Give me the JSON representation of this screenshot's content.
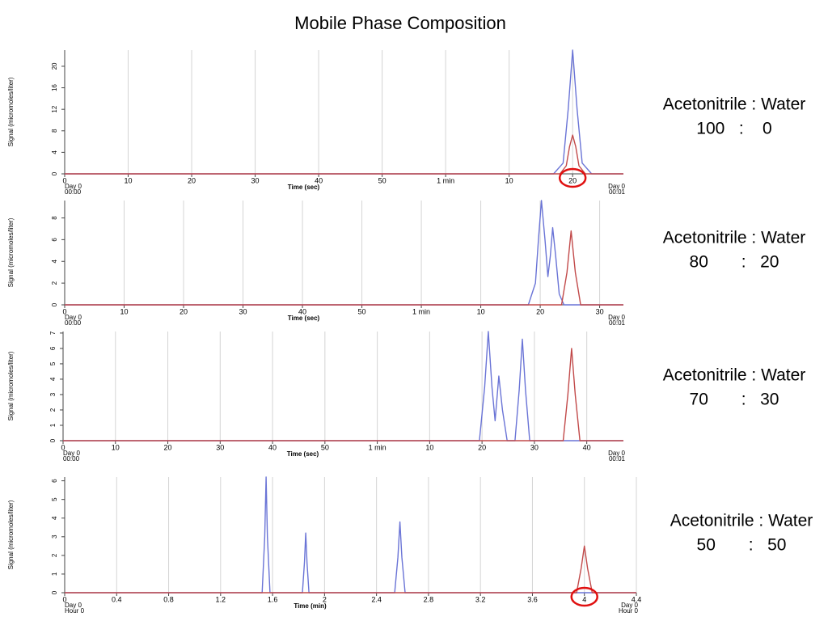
{
  "chart_data": [
    {
      "type": "line",
      "title": "Mobile Phase Composition",
      "x_label": "Time (sec)",
      "y_label": "Signal (micromoles/liter)",
      "start_label": [
        "Day 0",
        "00:00"
      ],
      "end_label": [
        "Day 0",
        "00:01"
      ],
      "annotation": "Acetonitrile : Water",
      "ratio": "100   :    0",
      "highlight": true,
      "xlim": [
        0,
        88
      ],
      "xticks": [
        0,
        10,
        20,
        30,
        40,
        50,
        {
          "value": 60,
          "label": "1 min"
        },
        {
          "value": 70,
          "label": "10"
        },
        {
          "value": 80,
          "label": "20"
        }
      ],
      "ylim": [
        0,
        23
      ],
      "yticks": [
        0,
        4,
        8,
        12,
        16,
        20
      ],
      "grid": true,
      "series": [
        {
          "color": "#6a74d6",
          "x": [
            0,
            77,
            78.5,
            79.3,
            80,
            80.7,
            81.5,
            83,
            88
          ],
          "values": [
            0,
            0,
            2,
            12,
            23,
            12,
            2,
            0,
            0
          ]
        },
        {
          "color": "#c24a4a",
          "x": [
            0,
            78,
            79,
            79.5,
            80,
            80.5,
            81,
            82,
            88
          ],
          "values": [
            0,
            0,
            1.5,
            5,
            7.2,
            5,
            1.5,
            0,
            0
          ]
        }
      ]
    },
    {
      "type": "line",
      "x_label": "Time (sec)",
      "y_label": "Signal (micromoles/liter)",
      "start_label": [
        "Day 0",
        "00:00"
      ],
      "end_label": [
        "Day 0",
        "00:01"
      ],
      "annotation": "Acetonitrile : Water",
      "ratio": "80       :   20",
      "highlight": false,
      "xlim": [
        0,
        94
      ],
      "xticks": [
        0,
        10,
        20,
        30,
        40,
        50,
        {
          "value": 60,
          "label": "1 min"
        },
        {
          "value": 70,
          "label": "10"
        },
        {
          "value": 80,
          "label": "20"
        },
        {
          "value": 90,
          "label": "30"
        }
      ],
      "ylim": [
        0,
        9.6
      ],
      "yticks": [
        0,
        2,
        4,
        6,
        8
      ],
      "grid": true,
      "series": [
        {
          "color": "#6a74d6",
          "x": [
            0,
            78,
            79.2,
            79.7,
            80.2,
            80.8,
            81.3,
            81.7,
            82.1,
            82.6,
            83.2,
            84,
            94
          ],
          "values": [
            0,
            0,
            2,
            6,
            9.6,
            6,
            2.6,
            4.5,
            7.1,
            4.5,
            1,
            0,
            0
          ]
        },
        {
          "color": "#c24a4a",
          "x": [
            0,
            83.6,
            84.5,
            85.2,
            85.9,
            86.8,
            94
          ],
          "values": [
            0,
            0,
            3,
            6.8,
            3,
            0,
            0
          ]
        }
      ]
    },
    {
      "type": "line",
      "x_label": "Time (sec)",
      "y_label": "Signal (micromoles/liter)",
      "start_label": [
        "Day 0",
        "00:00"
      ],
      "end_label": [
        "Day 0",
        "00:01"
      ],
      "annotation": "Acetonitrile : Water",
      "ratio": "70       :   30",
      "highlight": false,
      "xlim": [
        0,
        107
      ],
      "xticks": [
        0,
        10,
        20,
        30,
        40,
        50,
        {
          "value": 60,
          "label": "1 min"
        },
        {
          "value": 70,
          "label": "10"
        },
        {
          "value": 80,
          "label": "20"
        },
        {
          "value": 90,
          "label": "30"
        },
        {
          "value": 100,
          "label": "40"
        }
      ],
      "ylim": [
        0,
        7.1
      ],
      "yticks": [
        0,
        1,
        2,
        3,
        4,
        5,
        6,
        7
      ],
      "grid": true,
      "series": [
        {
          "color": "#6a74d6",
          "x": [
            0,
            79.5,
            80.5,
            81.2,
            81.9,
            82.5,
            83.2,
            83.9,
            84.8,
            86.3,
            87.1,
            87.7,
            88.3,
            89.1,
            107
          ],
          "values": [
            0,
            0,
            3.5,
            7.1,
            3.5,
            1.3,
            4.2,
            2,
            0,
            0,
            3.3,
            6.6,
            3.3,
            0,
            0
          ]
        },
        {
          "color": "#c24a4a",
          "x": [
            0,
            95.5,
            96.4,
            97.1,
            97.8,
            98.7,
            107
          ],
          "values": [
            0,
            0,
            3,
            6,
            3,
            0,
            0
          ]
        }
      ]
    },
    {
      "type": "line",
      "x_label": "Time (min)",
      "y_label": "Signal (micromoles/liter)",
      "start_label": [
        "Day 0",
        "Hour 0"
      ],
      "end_label": [
        "Day 0",
        "Hour 0"
      ],
      "annotation": "Acetonitrile : Water",
      "ratio": "50       :   50",
      "highlight": true,
      "xlim": [
        0,
        4.4
      ],
      "xticks": [
        0,
        0.4,
        0.8,
        1.2,
        1.6,
        2,
        2.4,
        2.8,
        3.2,
        3.6,
        4,
        4.4
      ],
      "ylim": [
        0,
        6.2
      ],
      "yticks": [
        0,
        1,
        2,
        3,
        4,
        5,
        6
      ],
      "grid": true,
      "series": [
        {
          "color": "#6a74d6",
          "x": [
            0,
            1.52,
            1.54,
            1.55,
            1.56,
            1.58,
            1.83,
            1.845,
            1.855,
            1.865,
            1.88,
            2.54,
            2.565,
            2.58,
            2.595,
            2.62,
            4.4
          ],
          "values": [
            0,
            0,
            3,
            6.2,
            3,
            0,
            0,
            1.6,
            3.2,
            1.6,
            0,
            0,
            1.9,
            3.8,
            1.9,
            0,
            0
          ]
        },
        {
          "color": "#c24a4a",
          "x": [
            0,
            3.94,
            3.975,
            4.0,
            4.025,
            4.06,
            4.4
          ],
          "values": [
            0,
            0,
            1.3,
            2.5,
            1.3,
            0,
            0
          ]
        }
      ]
    }
  ]
}
